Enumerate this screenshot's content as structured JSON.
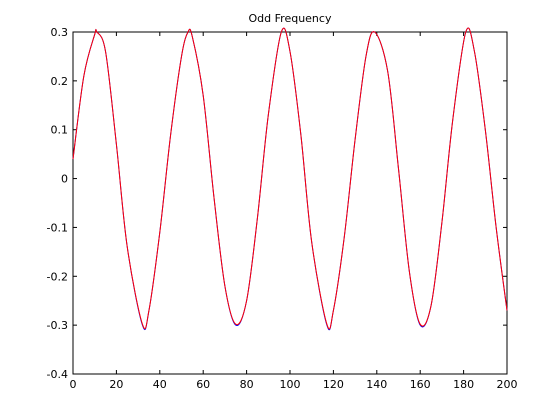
{
  "chart_data": {
    "type": "line",
    "title": "Odd Frequency",
    "xlabel": "",
    "ylabel": "",
    "xlim": [
      0,
      200
    ],
    "ylim": [
      -0.4,
      0.3
    ],
    "x_ticks": [
      0,
      20,
      40,
      60,
      80,
      100,
      120,
      140,
      160,
      180,
      200
    ],
    "y_ticks": [
      -0.4,
      -0.3,
      -0.2,
      -0.1,
      0,
      0.1,
      0.2,
      0.3
    ],
    "x_tick_labels": [
      "0",
      "20",
      "40",
      "60",
      "80",
      "100",
      "120",
      "140",
      "160",
      "180",
      "200"
    ],
    "y_tick_labels": [
      "-0.4",
      "-0.3",
      "-0.2",
      "-0.1",
      "0",
      "0.1",
      "0.2",
      "0.3"
    ],
    "grid": false,
    "legend": "none",
    "series": [
      {
        "color": "#0000ff",
        "x": [
          0,
          5,
          10,
          11,
          15,
          20,
          25,
          32,
          35,
          40,
          45,
          50,
          53,
          55,
          60,
          65,
          70,
          75,
          80,
          85,
          90,
          96,
          100,
          105,
          110,
          117,
          120,
          125,
          130,
          135,
          139,
          145,
          150,
          155,
          160,
          165,
          170,
          175,
          181,
          185,
          190,
          195,
          200
        ],
        "y": [
          0.04,
          0.21,
          0.295,
          0.3,
          0.26,
          0.07,
          -0.14,
          -0.3,
          -0.27,
          -0.11,
          0.09,
          0.25,
          0.3,
          0.29,
          0.17,
          -0.04,
          -0.22,
          -0.3,
          -0.25,
          -0.08,
          0.13,
          0.3,
          0.26,
          0.09,
          -0.13,
          -0.3,
          -0.27,
          -0.12,
          0.08,
          0.25,
          0.3,
          0.22,
          0.02,
          -0.19,
          -0.3,
          -0.26,
          -0.09,
          0.12,
          0.3,
          0.26,
          0.1,
          -0.1,
          -0.27
        ]
      },
      {
        "color": "#ff0000",
        "x": [
          0,
          5,
          10,
          11,
          15,
          20,
          25,
          32,
          35,
          40,
          45,
          50,
          53,
          55,
          60,
          65,
          70,
          75,
          80,
          85,
          90,
          96,
          100,
          105,
          110,
          117,
          120,
          125,
          130,
          135,
          139,
          145,
          150,
          155,
          160,
          165,
          170,
          175,
          181,
          185,
          190,
          195,
          200
        ],
        "y": [
          0.04,
          0.21,
          0.295,
          0.3,
          0.26,
          0.07,
          -0.14,
          -0.298,
          -0.27,
          -0.11,
          0.09,
          0.25,
          0.3,
          0.29,
          0.17,
          -0.04,
          -0.22,
          -0.298,
          -0.25,
          -0.08,
          0.13,
          0.3,
          0.26,
          0.09,
          -0.13,
          -0.298,
          -0.27,
          -0.12,
          0.08,
          0.25,
          0.3,
          0.22,
          0.02,
          -0.19,
          -0.298,
          -0.26,
          -0.09,
          0.12,
          0.3,
          0.26,
          0.1,
          -0.1,
          -0.27
        ]
      }
    ]
  }
}
